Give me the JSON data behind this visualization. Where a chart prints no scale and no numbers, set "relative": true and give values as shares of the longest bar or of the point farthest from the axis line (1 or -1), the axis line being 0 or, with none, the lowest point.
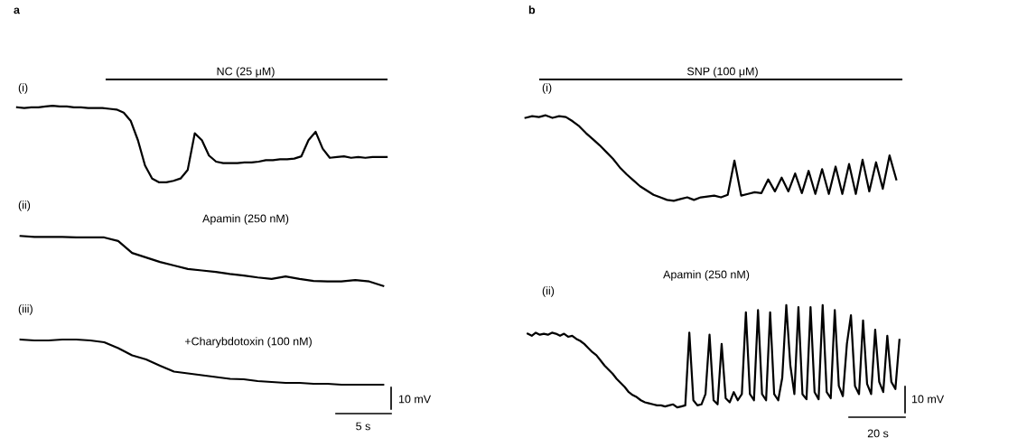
{
  "chart_data": [
    {
      "type": "line",
      "relative": true,
      "annotations": [
        "a",
        "(i)",
        "NC (25 μM)"
      ],
      "categories": [
        null,
        null,
        null,
        null,
        null,
        null,
        null,
        null,
        null,
        null,
        null,
        null,
        null,
        null,
        null,
        null,
        null,
        null,
        null,
        null,
        null,
        null,
        null,
        null,
        null,
        null,
        null,
        null,
        null,
        null,
        null,
        null,
        null,
        null,
        null,
        null,
        null,
        null,
        null,
        null,
        null,
        null,
        null,
        null,
        null,
        null,
        null,
        null,
        null,
        null,
        null,
        null,
        null
      ],
      "series": [
        {
          "color": "#000000",
          "values": [
            0.98,
            0.97,
            0.98,
            0.98,
            0.99,
            1,
            0.99,
            0.99,
            0.98,
            0.98,
            0.97,
            0.97,
            0.97,
            0.96,
            0.95,
            0.91,
            0.8,
            0.55,
            0.22,
            0.05,
            0,
            0,
            0.02,
            0.05,
            0.16,
            0.64,
            0.55,
            0.35,
            0.27,
            0.25,
            0.25,
            0.25,
            0.26,
            0.26,
            0.27,
            0.29,
            0.29,
            0.3,
            0.3,
            0.31,
            0.34,
            0.55,
            0.66,
            0.44,
            0.32,
            0.33,
            0.34,
            0.32,
            0.33,
            0.32,
            0.33,
            0.33,
            0.33
          ]
        }
      ]
    },
    {
      "type": "line",
      "relative": true,
      "annotations": [
        "(ii)",
        "Apamin (250 nM)"
      ],
      "categories": [
        null,
        null,
        null,
        null,
        null,
        null,
        null,
        null,
        null,
        null,
        null,
        null,
        null,
        null,
        null,
        null,
        null,
        null,
        null,
        null,
        null,
        null,
        null,
        null,
        null,
        null,
        null
      ],
      "series": [
        {
          "color": "#000000",
          "values": [
            1,
            0.98,
            0.98,
            0.98,
            0.97,
            0.97,
            0.97,
            0.9,
            0.66,
            0.57,
            0.48,
            0.41,
            0.34,
            0.31,
            0.28,
            0.24,
            0.21,
            0.17,
            0.14,
            0.19,
            0.14,
            0.1,
            0.09,
            0.09,
            0.12,
            0.09,
            0
          ]
        }
      ]
    },
    {
      "type": "line",
      "relative": true,
      "annotations": [
        "(iii)",
        "+Charybdotoxin (100 nM)",
        "10 mV",
        "5 s"
      ],
      "categories": [
        null,
        null,
        null,
        null,
        null,
        null,
        null,
        null,
        null,
        null,
        null,
        null,
        null,
        null,
        null,
        null,
        null,
        null,
        null,
        null,
        null,
        null,
        null,
        null,
        null,
        null,
        null
      ],
      "series": [
        {
          "color": "#000000",
          "values": [
            1,
            0.98,
            0.98,
            1,
            1,
            0.98,
            0.94,
            0.81,
            0.65,
            0.56,
            0.42,
            0.29,
            0.25,
            0.21,
            0.17,
            0.13,
            0.12,
            0.08,
            0.06,
            0.04,
            0.04,
            0.02,
            0.02,
            0,
            0,
            0,
            0
          ]
        }
      ]
    },
    {
      "type": "line",
      "relative": true,
      "annotations": [
        "b",
        "(i)",
        "SNP (100 μM)"
      ],
      "categories": [
        null,
        null,
        null,
        null,
        null,
        null,
        null,
        null,
        null,
        null,
        null,
        null,
        null,
        null,
        null,
        null,
        null,
        null,
        null,
        null,
        null,
        null,
        null,
        null,
        null,
        null,
        null,
        null,
        null,
        null,
        null,
        null,
        null,
        null,
        null,
        null,
        null,
        null,
        null,
        null,
        null,
        null,
        null,
        null,
        null,
        null,
        null,
        null,
        null,
        null,
        null,
        null,
        null,
        null,
        null,
        null
      ],
      "series": [
        {
          "color": "#000000",
          "values": [
            0.97,
            0.99,
            0.98,
            1,
            0.97,
            0.99,
            0.98,
            0.93,
            0.87,
            0.79,
            0.72,
            0.65,
            0.57,
            0.49,
            0.39,
            0.31,
            0.24,
            0.17,
            0.12,
            0.07,
            0.04,
            0.01,
            0,
            0.02,
            0.04,
            0.01,
            0.04,
            0.05,
            0.06,
            0.04,
            0.07,
            0.47,
            0.06,
            0.08,
            0.1,
            0.09,
            0.25,
            0.11,
            0.27,
            0.11,
            0.32,
            0.09,
            0.35,
            0.08,
            0.37,
            0.08,
            0.4,
            0.08,
            0.43,
            0.08,
            0.48,
            0.11,
            0.45,
            0.14,
            0.53,
            0.25
          ]
        }
      ]
    },
    {
      "type": "line",
      "relative": true,
      "annotations": [
        "Apamin (250 nM)",
        "(ii)",
        "10 mV",
        "20 s"
      ],
      "categories": [
        null,
        null,
        null,
        null,
        null,
        null,
        null,
        null,
        null,
        null,
        null,
        null,
        null,
        null,
        null,
        null,
        null,
        null,
        null,
        null,
        null,
        null,
        null,
        null,
        null,
        null,
        null,
        null,
        null,
        null,
        null,
        null,
        null,
        null,
        null,
        null,
        null,
        null,
        null,
        null,
        null,
        null,
        null,
        null,
        null,
        null,
        null,
        null,
        null,
        null,
        null,
        null,
        null,
        null,
        null,
        null,
        null,
        null,
        null,
        null,
        null,
        null,
        null,
        null,
        null,
        null,
        null,
        null,
        null,
        null,
        null,
        null,
        null,
        null,
        null,
        null,
        null,
        null,
        null,
        null,
        null,
        null,
        null,
        null,
        null,
        null,
        null,
        null,
        null,
        null,
        null,
        null,
        null
      ],
      "series": [
        {
          "color": "#000000",
          "values": [
            0.72,
            0.7,
            0.73,
            0.71,
            0.72,
            0.71,
            0.73,
            0.72,
            0.7,
            0.72,
            0.69,
            0.7,
            0.67,
            0.65,
            0.62,
            0.58,
            0.54,
            0.51,
            0.46,
            0.41,
            0.37,
            0.33,
            0.28,
            0.24,
            0.2,
            0.15,
            0.12,
            0.1,
            0.07,
            0.05,
            0.04,
            0.03,
            0.02,
            0.02,
            0.01,
            0.02,
            0.03,
            0,
            0.01,
            0.02,
            0.73,
            0.07,
            0.02,
            0.03,
            0.13,
            0.71,
            0.07,
            0.03,
            0.62,
            0.09,
            0.05,
            0.15,
            0.07,
            0.13,
            0.93,
            0.13,
            0.07,
            0.95,
            0.13,
            0.07,
            0.93,
            0.13,
            0.07,
            0.29,
            1,
            0.41,
            0.13,
            0.98,
            0.13,
            0.08,
            0.98,
            0.15,
            0.08,
            1,
            0.15,
            0.09,
            0.95,
            0.21,
            0.11,
            0.62,
            0.9,
            0.21,
            0.13,
            0.85,
            0.23,
            0.13,
            0.76,
            0.25,
            0.15,
            0.7,
            0.25,
            0.18,
            0.66
          ]
        }
      ]
    }
  ]
}
